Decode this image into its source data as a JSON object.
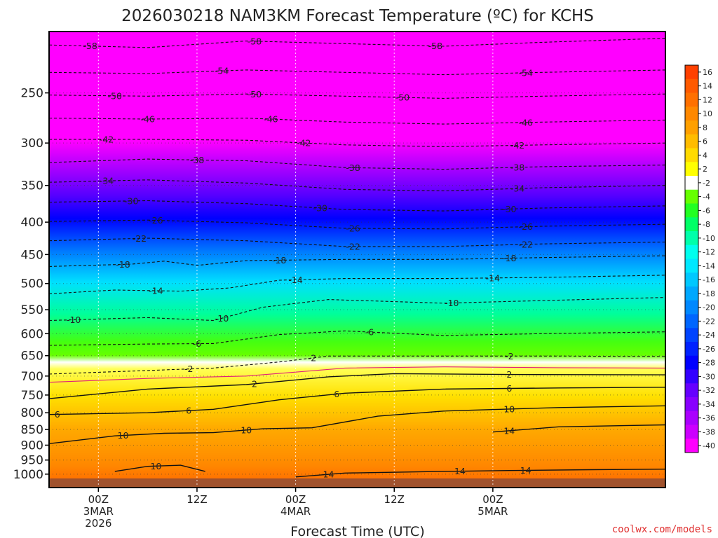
{
  "chart_data": {
    "type": "heatmap",
    "title": "2026030218 NAM3KM Forecast Temperature (ºC) for KCHS",
    "xlabel": "Forecast Time (UTC)",
    "ylabel": "",
    "credit": "coolwx.com/models",
    "y_scale": "log-pressure",
    "ylim": [
      1050,
      200
    ],
    "xlim": [
      -6,
      69
    ],
    "y_ticks": [
      250,
      300,
      350,
      400,
      450,
      500,
      550,
      600,
      650,
      700,
      750,
      800,
      850,
      900,
      950,
      1000
    ],
    "x_ticks": [
      {
        "hour": 0,
        "lines": [
          "00Z",
          "3MAR",
          "2026"
        ]
      },
      {
        "hour": 12,
        "lines": [
          "12Z"
        ]
      },
      {
        "hour": 24,
        "lines": [
          "00Z",
          "4MAR"
        ]
      },
      {
        "hour": 36,
        "lines": [
          "12Z"
        ]
      },
      {
        "hour": 48,
        "lines": [
          "00Z",
          "5MAR"
        ]
      }
    ],
    "colorbar": {
      "labels": [
        "16",
        "14",
        "12",
        "10",
        "8",
        "6",
        "4",
        "2",
        "-2",
        "-4",
        "-6",
        "-8",
        "-10",
        "-12",
        "-14",
        "-16",
        "-18",
        "-20",
        "-22",
        "-24",
        "-26",
        "-28",
        "-30",
        "-32",
        "-34",
        "-36",
        "-38",
        "-40"
      ],
      "colors": [
        "#ff4000",
        "#ff5a00",
        "#ff7000",
        "#ff8800",
        "#ffa000",
        "#ffbc00",
        "#ffda00",
        "#ffff00",
        "#ffffff",
        "#66ff00",
        "#22ff22",
        "#00ff66",
        "#00ffaa",
        "#00ffee",
        "#00e8ff",
        "#00c8ff",
        "#00a8ff",
        "#0088ff",
        "#0066ff",
        "#0044ff",
        "#0022ff",
        "#0000ff",
        "#3300ff",
        "#6600ff",
        "#8800ff",
        "#aa00ff",
        "#cc00ff",
        "#ff00ff"
      ]
    },
    "contours": [
      {
        "value": -58,
        "kind": "dashed",
        "points": [
          [
            -6,
            210
          ],
          [
            6,
            212
          ],
          [
            18,
            207
          ],
          [
            30,
            209
          ],
          [
            42,
            211
          ],
          [
            54,
            208
          ],
          [
            69,
            205
          ]
        ],
        "labels": [
          {
            "text": "-58",
            "hour": -1
          },
          {
            "text": "-58",
            "hour": 19
          },
          {
            "text": "-58",
            "hour": 41
          }
        ]
      },
      {
        "value": -54,
        "kind": "dashed",
        "points": [
          [
            -6,
            232
          ],
          [
            6,
            233
          ],
          [
            18,
            230
          ],
          [
            30,
            232
          ],
          [
            42,
            234
          ],
          [
            54,
            232
          ],
          [
            69,
            230
          ]
        ],
        "labels": [
          {
            "text": "-54",
            "hour": 15
          },
          {
            "text": "-54",
            "hour": 52
          }
        ]
      },
      {
        "value": -50,
        "kind": "dashed",
        "points": [
          [
            -6,
            252
          ],
          [
            6,
            253
          ],
          [
            18,
            251
          ],
          [
            30,
            253
          ],
          [
            42,
            255
          ],
          [
            54,
            253
          ],
          [
            69,
            251
          ]
        ],
        "labels": [
          {
            "text": "-50",
            "hour": 2
          },
          {
            "text": "-50",
            "hour": 19
          },
          {
            "text": "-50",
            "hour": 37
          }
        ]
      },
      {
        "value": -46,
        "kind": "dashed",
        "points": [
          [
            -6,
            274
          ],
          [
            6,
            275
          ],
          [
            18,
            274
          ],
          [
            30,
            278
          ],
          [
            42,
            280
          ],
          [
            54,
            278
          ],
          [
            69,
            276
          ]
        ],
        "labels": [
          {
            "text": "-46",
            "hour": 6
          },
          {
            "text": "-46",
            "hour": 21
          },
          {
            "text": "-46",
            "hour": 52
          }
        ]
      },
      {
        "value": -42,
        "kind": "dashed",
        "points": [
          [
            -6,
            296
          ],
          [
            6,
            296
          ],
          [
            18,
            297
          ],
          [
            30,
            302
          ],
          [
            42,
            304
          ],
          [
            54,
            302
          ],
          [
            69,
            300
          ]
        ],
        "labels": [
          {
            "text": "-42",
            "hour": 1
          },
          {
            "text": "-42",
            "hour": 25
          },
          {
            "text": "-42",
            "hour": 51
          }
        ]
      },
      {
        "value": -38,
        "kind": "dashed",
        "points": [
          [
            -6,
            322
          ],
          [
            6,
            318
          ],
          [
            18,
            320
          ],
          [
            30,
            328
          ],
          [
            42,
            330
          ],
          [
            54,
            327
          ],
          [
            69,
            325
          ]
        ],
        "labels": [
          {
            "text": "-38",
            "hour": 12
          },
          {
            "text": "-38",
            "hour": 31
          },
          {
            "text": "-38",
            "hour": 51
          }
        ]
      },
      {
        "value": -34,
        "kind": "dashed",
        "points": [
          [
            -6,
            346
          ],
          [
            6,
            343
          ],
          [
            18,
            347
          ],
          [
            30,
            355
          ],
          [
            42,
            357
          ],
          [
            54,
            353
          ],
          [
            69,
            350
          ]
        ],
        "labels": [
          {
            "text": "-34",
            "hour": 1
          },
          {
            "text": "-34",
            "hour": 51
          }
        ]
      },
      {
        "value": -30,
        "kind": "dashed",
        "points": [
          [
            -6,
            372
          ],
          [
            6,
            370
          ],
          [
            18,
            374
          ],
          [
            30,
            382
          ],
          [
            42,
            384
          ],
          [
            54,
            380
          ],
          [
            69,
            377
          ]
        ],
        "labels": [
          {
            "text": "-30",
            "hour": 4
          },
          {
            "text": "-30",
            "hour": 27
          },
          {
            "text": "-30",
            "hour": 50
          }
        ]
      },
      {
        "value": -26,
        "kind": "dashed",
        "points": [
          [
            -6,
            399
          ],
          [
            6,
            397
          ],
          [
            18,
            401
          ],
          [
            30,
            409
          ],
          [
            42,
            410
          ],
          [
            54,
            406
          ],
          [
            69,
            403
          ]
        ],
        "labels": [
          {
            "text": "-26",
            "hour": 7
          },
          {
            "text": "-26",
            "hour": 31
          },
          {
            "text": "-26",
            "hour": 52
          }
        ]
      },
      {
        "value": -22,
        "kind": "dashed",
        "points": [
          [
            -6,
            428
          ],
          [
            6,
            424
          ],
          [
            18,
            428
          ],
          [
            30,
            437
          ],
          [
            42,
            437
          ],
          [
            54,
            433
          ],
          [
            69,
            430
          ]
        ],
        "labels": [
          {
            "text": "-22",
            "hour": 5
          },
          {
            "text": "-22",
            "hour": 31
          },
          {
            "text": "-22",
            "hour": 52
          }
        ]
      },
      {
        "value": -18,
        "kind": "dashed",
        "points": [
          [
            -6,
            470
          ],
          [
            4,
            466
          ],
          [
            8,
            461
          ],
          [
            12,
            468
          ],
          [
            18,
            460
          ],
          [
            30,
            458
          ],
          [
            42,
            458
          ],
          [
            54,
            455
          ],
          [
            69,
            452
          ]
        ],
        "labels": [
          {
            "text": "-18",
            "hour": 3
          },
          {
            "text": "-18",
            "hour": 22
          },
          {
            "text": "-18",
            "hour": 50
          }
        ]
      },
      {
        "value": -14,
        "kind": "dashed",
        "points": [
          [
            -6,
            519
          ],
          [
            2,
            512
          ],
          [
            10,
            514
          ],
          [
            16,
            508
          ],
          [
            22,
            494
          ],
          [
            30,
            491
          ],
          [
            42,
            491
          ],
          [
            54,
            489
          ],
          [
            69,
            485
          ]
        ],
        "labels": [
          {
            "text": "-14",
            "hour": 7
          },
          {
            "text": "-14",
            "hour": 24
          },
          {
            "text": "-14",
            "hour": 48
          }
        ]
      },
      {
        "value": -10,
        "kind": "dashed",
        "points": [
          [
            -6,
            572
          ],
          [
            6,
            566
          ],
          [
            14,
            572
          ],
          [
            20,
            545
          ],
          [
            28,
            530
          ],
          [
            42,
            537
          ],
          [
            54,
            532
          ],
          [
            69,
            526
          ]
        ],
        "labels": [
          {
            "text": "-10",
            "hour": -3
          },
          {
            "text": "-10",
            "hour": 15
          },
          {
            "text": "-10",
            "hour": 43
          }
        ]
      },
      {
        "value": -6,
        "kind": "dashed",
        "points": [
          [
            -6,
            626
          ],
          [
            6,
            623
          ],
          [
            14,
            622
          ],
          [
            22,
            602
          ],
          [
            30,
            594
          ],
          [
            42,
            604
          ],
          [
            54,
            600
          ],
          [
            69,
            596
          ]
        ],
        "labels": [
          {
            "text": "-6",
            "hour": 12
          },
          {
            "text": "-6",
            "hour": 33
          }
        ]
      },
      {
        "value": -2,
        "kind": "dashed",
        "points": [
          [
            -6,
            695
          ],
          [
            6,
            686
          ],
          [
            14,
            680
          ],
          [
            22,
            665
          ],
          [
            28,
            651
          ],
          [
            42,
            651
          ],
          [
            56,
            651
          ],
          [
            69,
            652
          ]
        ],
        "labels": [
          {
            "text": "-2",
            "hour": 11
          },
          {
            "text": "-2",
            "hour": 26
          },
          {
            "text": "-2",
            "hour": 50
          }
        ]
      },
      {
        "value": 0,
        "kind": "magenta",
        "points": [
          [
            -6,
            716
          ],
          [
            6,
            706
          ],
          [
            18,
            700
          ],
          [
            24,
            690
          ],
          [
            30,
            680
          ],
          [
            42,
            677
          ],
          [
            56,
            679
          ],
          [
            69,
            680
          ]
        ],
        "labels": []
      },
      {
        "value": 2,
        "kind": "solid",
        "points": [
          [
            -6,
            760
          ],
          [
            6,
            734
          ],
          [
            18,
            722
          ],
          [
            28,
            702
          ],
          [
            36,
            694
          ],
          [
            50,
            696
          ],
          [
            69,
            697
          ]
        ],
        "labels": [
          {
            "text": "2",
            "hour": 19
          },
          {
            "text": "2",
            "hour": 50
          }
        ]
      },
      {
        "value": 6,
        "kind": "solid",
        "points": [
          [
            -6,
            805
          ],
          [
            6,
            800
          ],
          [
            14,
            790
          ],
          [
            22,
            763
          ],
          [
            30,
            745
          ],
          [
            42,
            734
          ],
          [
            56,
            731
          ],
          [
            69,
            729
          ]
        ],
        "labels": [
          {
            "text": "6",
            "hour": -5
          },
          {
            "text": "6",
            "hour": 11
          },
          {
            "text": "6",
            "hour": 29
          },
          {
            "text": "6",
            "hour": 50
          }
        ]
      },
      {
        "value": 10,
        "kind": "solid",
        "points": [
          [
            -6,
            895
          ],
          [
            2,
            870
          ],
          [
            8,
            862
          ],
          [
            14,
            860
          ],
          [
            20,
            848
          ],
          [
            26,
            845
          ],
          [
            34,
            810
          ],
          [
            42,
            795
          ],
          [
            56,
            785
          ],
          [
            69,
            780
          ]
        ],
        "labels": [
          {
            "text": "10",
            "hour": 3
          },
          {
            "text": "10",
            "hour": 18
          },
          {
            "text": "10",
            "hour": 50
          }
        ]
      },
      {
        "value": 10,
        "kind": "solid",
        "points": [
          [
            2,
            990
          ],
          [
            6,
            972
          ],
          [
            10,
            968
          ],
          [
            13,
            990
          ]
        ],
        "labels": [
          {
            "text": "10",
            "hour": 7
          }
        ]
      },
      {
        "value": 14,
        "kind": "solid",
        "points": [
          [
            24,
            1010
          ],
          [
            30,
            996
          ],
          [
            40,
            991
          ],
          [
            50,
            987
          ],
          [
            60,
            984
          ],
          [
            69,
            982
          ]
        ],
        "labels": [
          {
            "text": "14",
            "hour": 28
          },
          {
            "text": "14",
            "hour": 44
          },
          {
            "text": "14",
            "hour": 52
          }
        ]
      },
      {
        "value": 14,
        "kind": "solid",
        "points": [
          [
            48,
            858
          ],
          [
            56,
            842
          ],
          [
            69,
            836
          ]
        ],
        "labels": [
          {
            "text": "14",
            "hour": 50
          }
        ]
      }
    ]
  }
}
